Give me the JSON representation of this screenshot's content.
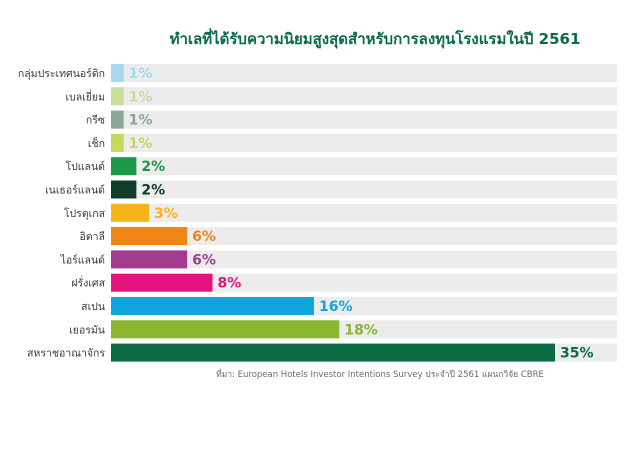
{
  "chart_data": {
    "type": "bar",
    "orientation": "horizontal",
    "title": "ทำเลที่ได้รับความนิยมสูงสุดสำหรับการลงทุนโรงแรมในปี 2561",
    "source": "ที่มา: European Hotels Investor Intentions Survey ประจำปี 2561 แผนกวิจัย CBRE",
    "xlim": [
      0,
      35
    ],
    "grid": false,
    "legend": "none",
    "categories": [
      "กลุ่มประเทศนอร์ดิก",
      "เบลเยี่ยม",
      "กรีซ",
      "เช็ก",
      "โปแลนด์",
      "เนเธอร์แลนด์",
      "โปรตุเกส",
      "อิตาลี",
      "ไอร์แลนด์",
      "ฝรั่งเศส",
      "สเปน",
      "เยอรมัน",
      "สหราชอาณาจักร"
    ],
    "values": [
      1,
      1,
      1,
      1,
      2,
      2,
      3,
      6,
      6,
      8,
      16,
      18,
      35
    ],
    "value_labels": [
      "1%",
      "1%",
      "1%",
      "1%",
      "2%",
      "2%",
      "3%",
      "6%",
      "6%",
      "8%",
      "16%",
      "18%",
      "35%"
    ],
    "colors": [
      "#a8d8ec",
      "#c9de9a",
      "#8aa79a",
      "#c4d85a",
      "#1a9a48",
      "#0f3d2a",
      "#f4b41a",
      "#ef8512",
      "#a23c8f",
      "#e2157f",
      "#0ea4dc",
      "#8ab72f",
      "#0b6b45"
    ],
    "track_color": "#ececec"
  }
}
